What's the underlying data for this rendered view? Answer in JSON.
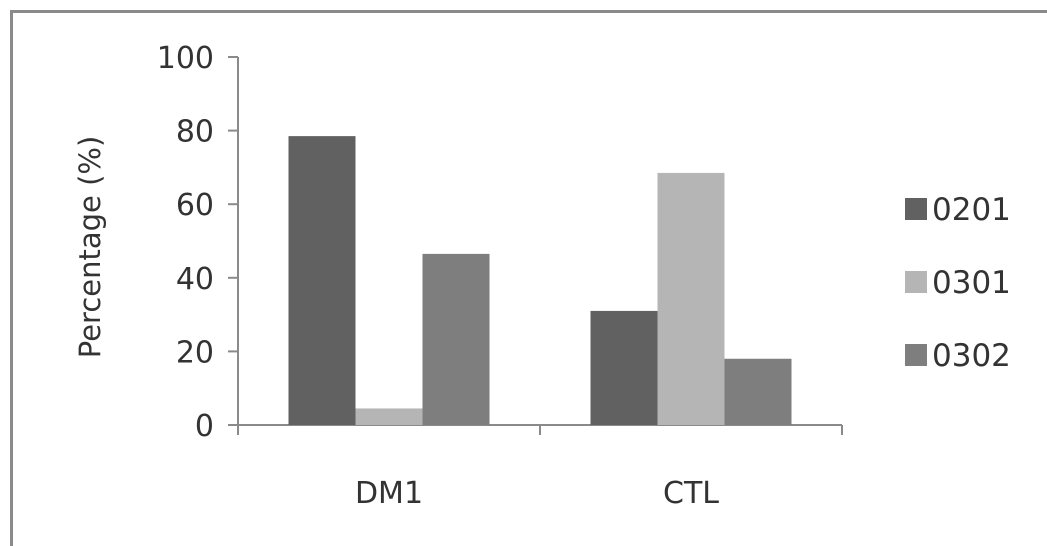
{
  "chart_data": {
    "type": "bar",
    "categories": [
      "DM1",
      "CTL"
    ],
    "series": [
      {
        "name": "0201",
        "values": [
          78.5,
          31
        ],
        "color": "#616161"
      },
      {
        "name": "0301",
        "values": [
          4.5,
          68.5
        ],
        "color": "#b5b5b5"
      },
      {
        "name": "0302",
        "values": [
          46.5,
          18
        ],
        "color": "#7e7e7e"
      }
    ],
    "title": "",
    "xlabel": "",
    "ylabel": "Percentage (%)",
    "ylim": [
      0,
      100
    ],
    "yticks": [
      0,
      20,
      40,
      60,
      80,
      100
    ],
    "grid": false,
    "legend_position": "right"
  }
}
